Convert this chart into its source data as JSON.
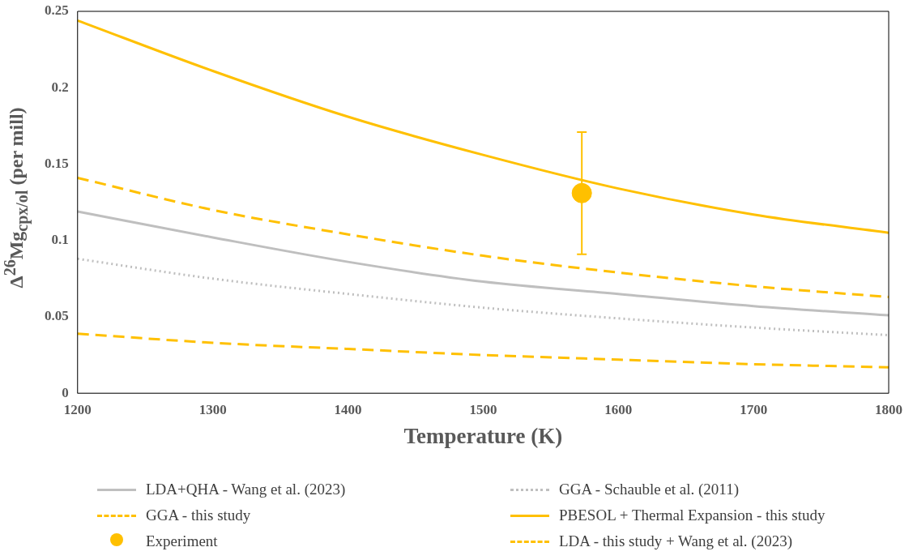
{
  "chart_data": {
    "type": "line",
    "xlabel": "Temperature (K)",
    "ylabel": "Δ$^{26}$Mg$_{cpx/ol}$ (per mill)",
    "x": [
      1200,
      1300,
      1400,
      1500,
      1600,
      1700,
      1800
    ],
    "xlim": [
      1200,
      1800
    ],
    "xticks": [
      1200,
      1300,
      1400,
      1500,
      1600,
      1700,
      1800
    ],
    "ylim": [
      0,
      0.25
    ],
    "yticks": [
      0,
      0.05,
      0.1,
      0.15,
      0.2,
      0.25
    ],
    "grid": false,
    "legend": "bottom",
    "marker": "none",
    "series": [
      {
        "name": "LDA+QHA - Wang et al. (2023)",
        "color": "#bfbfbf",
        "line_style": "solid",
        "values": [
          0.119,
          0.102,
          0.086,
          0.073,
          0.065,
          0.057,
          0.051
        ]
      },
      {
        "name": "GGA - Schauble et al. (2011)",
        "color": "#bfbfbf",
        "line_style": "dotted",
        "values": [
          0.088,
          0.075,
          0.065,
          0.056,
          0.049,
          0.043,
          0.038
        ]
      },
      {
        "name": "GGA - this study",
        "color": "#ffc000",
        "line_style": "dashed",
        "values": [
          0.039,
          0.033,
          0.029,
          0.025,
          0.022,
          0.019,
          0.017
        ]
      },
      {
        "name": "PBESOL + Thermal Expansion - this study",
        "color": "#ffc000",
        "line_style": "solid",
        "values": [
          0.244,
          0.211,
          0.181,
          0.156,
          0.134,
          0.117,
          0.105
        ]
      },
      {
        "name": "Experiment",
        "type": "scatter",
        "marker": "circle",
        "color": "#ffc000",
        "x": [
          1573
        ],
        "values": [
          0.131
        ],
        "errors": [
          0.04
        ]
      },
      {
        "name": "LDA - this study + Wang et al. (2023)",
        "color": "#ffc000",
        "line_style": "dashed",
        "values": [
          0.141,
          0.12,
          0.104,
          0.09,
          0.079,
          0.07,
          0.063
        ]
      }
    ]
  }
}
